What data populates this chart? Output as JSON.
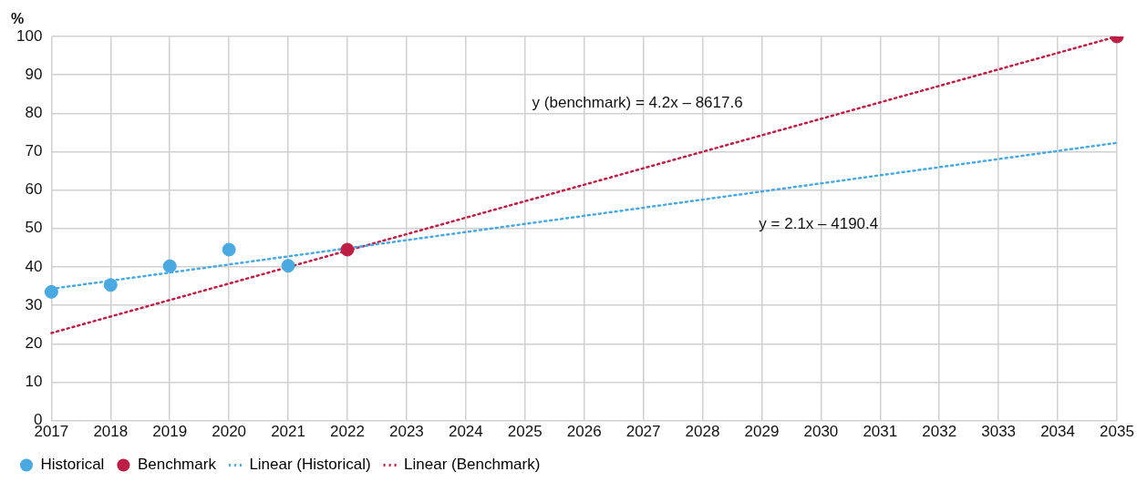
{
  "chart_data": {
    "type": "scatter",
    "ylabel": "%",
    "categories": [
      "2017",
      "2018",
      "2019",
      "2020",
      "2021",
      "2022",
      "2023",
      "2024",
      "2025",
      "2026",
      "2027",
      "2028",
      "2029",
      "2030",
      "2031",
      "2032",
      "3033",
      "2034",
      "2035"
    ],
    "series": [
      {
        "name": "Historical",
        "color": "#4aa9e0",
        "marker": "circle",
        "values": [
          33.5,
          35.3,
          40.2,
          44.5,
          40.3,
          null,
          null,
          null,
          null,
          null,
          null,
          null,
          null,
          null,
          null,
          null,
          null,
          null,
          null
        ]
      },
      {
        "name": "Benchmark",
        "color": "#be1e45",
        "marker": "circle",
        "values": [
          null,
          null,
          null,
          null,
          null,
          44.5,
          null,
          null,
          null,
          null,
          null,
          null,
          null,
          null,
          null,
          null,
          null,
          null,
          100
        ]
      },
      {
        "name": "Linear (Historical)",
        "type": "line",
        "color": "#4aa9e0",
        "marker": "none",
        "line_style": "dotted",
        "values": [
          34.3,
          null,
          null,
          null,
          null,
          null,
          null,
          null,
          null,
          null,
          null,
          null,
          null,
          null,
          null,
          null,
          null,
          null,
          72.3
        ]
      },
      {
        "name": "Linear (Benchmark)",
        "type": "line",
        "color": "#be1e45",
        "marker": "none",
        "line_style": "dotted",
        "values": [
          22.8,
          null,
          null,
          null,
          null,
          null,
          null,
          null,
          null,
          null,
          null,
          null,
          null,
          null,
          null,
          null,
          null,
          null,
          100
        ]
      }
    ],
    "ylim": [
      0,
      100
    ],
    "yticks": [
      0,
      10,
      20,
      30,
      40,
      50,
      60,
      70,
      80,
      90,
      100
    ],
    "grid": true,
    "legend": "bottom left",
    "annotations": [
      "y (benchmark) = 4.2x – 8617.6",
      "y = 2.1x – 4190.4"
    ]
  }
}
